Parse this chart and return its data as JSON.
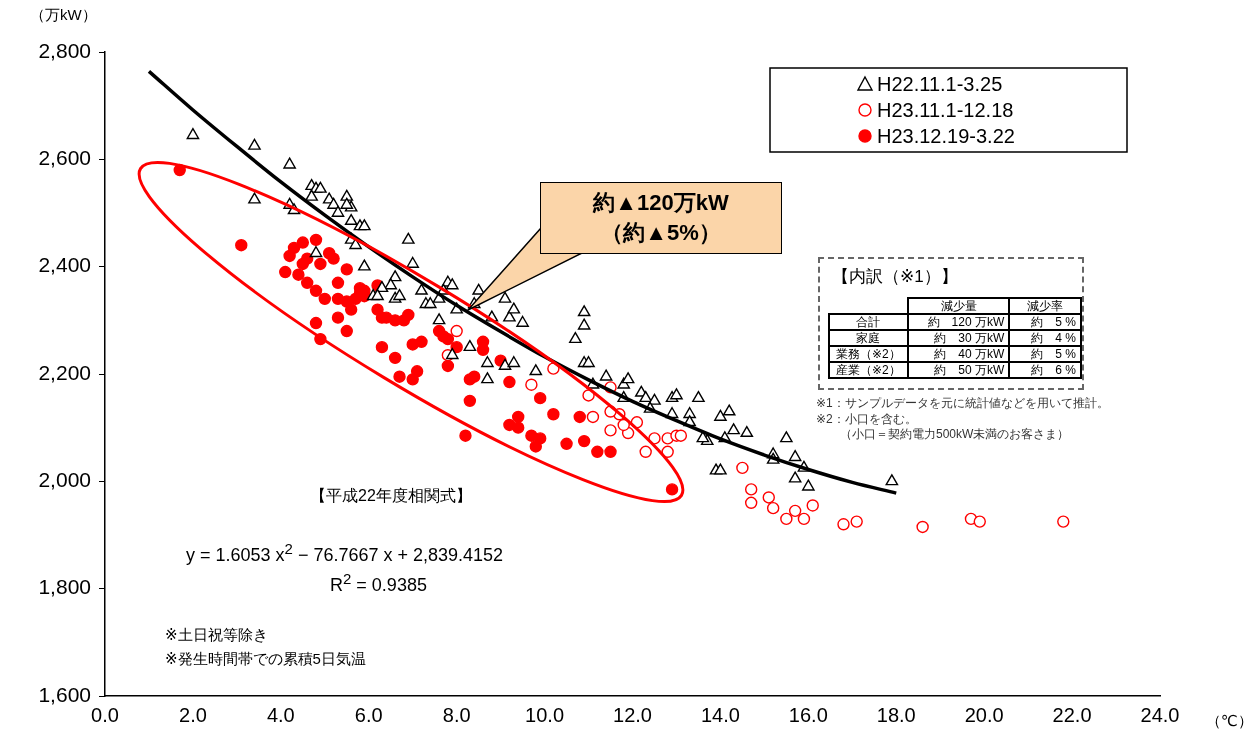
{
  "chart_data": {
    "type": "scatter",
    "xlabel": "（℃）",
    "ylabel": "（万kW）",
    "xlim": [
      0,
      24
    ],
    "xticks": [
      {
        "value": 0,
        "label": "0.0"
      },
      {
        "value": 2,
        "label": "2.0"
      },
      {
        "value": 4,
        "label": "4.0"
      },
      {
        "value": 6,
        "label": "6.0"
      },
      {
        "value": 8,
        "label": "8.0"
      },
      {
        "value": 10,
        "label": "10.0"
      },
      {
        "value": 12,
        "label": "12.0"
      },
      {
        "value": 14,
        "label": "14.0"
      },
      {
        "value": 16,
        "label": "16.0"
      },
      {
        "value": 18,
        "label": "18.0"
      },
      {
        "value": 20,
        "label": "20.0"
      },
      {
        "value": 22,
        "label": "22.0"
      },
      {
        "value": 24,
        "label": "24.0"
      }
    ],
    "ylim": [
      1600,
      2800
    ],
    "yticks": [
      {
        "value": 1600,
        "label": "1,600"
      },
      {
        "value": 1800,
        "label": "1,800"
      },
      {
        "value": 2000,
        "label": "2,000"
      },
      {
        "value": 2200,
        "label": "2,200"
      },
      {
        "value": 2400,
        "label": "2,400"
      },
      {
        "value": 2600,
        "label": "2,600"
      },
      {
        "value": 2800,
        "label": "2,800"
      }
    ],
    "grid": false,
    "legend": "top right",
    "series": [
      {
        "name": "H22.11.1-3.25",
        "color": "#000000",
        "marker": "triangle",
        "x": [
          2.0,
          3.4,
          4.2,
          3.4,
          4.2,
          4.3,
          4.7,
          4.8,
          4.9,
          4.7,
          5.1,
          5.5,
          5.2,
          5.6,
          5.3,
          5.5,
          5.6,
          5.8,
          5.6,
          5.7,
          5.9,
          4.8,
          6.9,
          7.0,
          5.9,
          6.6,
          6.5,
          6.3,
          6.1,
          6.2,
          6.6,
          6.7,
          7.2,
          7.3,
          7.4,
          7.8,
          7.7,
          7.9,
          8.5,
          7.6,
          8.0,
          8.4,
          7.6,
          8.8,
          9.2,
          9.5,
          9.1,
          9.3,
          8.7,
          8.7,
          7.9,
          8.3,
          9.1,
          9.8,
          9.3,
          10.9,
          10.9,
          10.7,
          10.9,
          11.0,
          11.1,
          11.4,
          11.8,
          11.9,
          12.2,
          12.3,
          11.8,
          12.5,
          12.4,
          12.9,
          13.0,
          12.9,
          13.5,
          13.3,
          13.3,
          14.0,
          14.2,
          13.7,
          13.6,
          14.1,
          14.3,
          14.6,
          13.9,
          14.0,
          15.2,
          15.7,
          15.2,
          15.9,
          16.0,
          15.7,
          15.5,
          17.9
        ],
        "values": [
          2645,
          2625,
          2590,
          2525,
          2515,
          2505,
          2550,
          2545,
          2545,
          2530,
          2525,
          2530,
          2515,
          2510,
          2500,
          2515,
          2485,
          2475,
          2450,
          2440,
          2475,
          2425,
          2450,
          2405,
          2400,
          2380,
          2365,
          2360,
          2345,
          2345,
          2340,
          2345,
          2355,
          2330,
          2330,
          2370,
          2355,
          2365,
          2355,
          2340,
          2320,
          2330,
          2300,
          2305,
          2305,
          2295,
          2340,
          2320,
          2220,
          2190,
          2235,
          2250,
          2215,
          2205,
          2220,
          2315,
          2290,
          2265,
          2220,
          2220,
          2180,
          2195,
          2180,
          2190,
          2165,
          2155,
          2155,
          2150,
          2135,
          2155,
          2160,
          2125,
          2155,
          2125,
          2110,
          2120,
          2130,
          2075,
          2080,
          2080,
          2095,
          2090,
          2020,
          2020,
          2050,
          2045,
          2040,
          2025,
          1990,
          2005,
          2080,
          2000
        ]
      },
      {
        "name": "H23.11.1-12.18",
        "color": "#ff0000",
        "marker": "circle",
        "x": [
          8.0,
          7.8,
          9.7,
          10.2,
          11.5,
          11.7,
          11.9,
          11.5,
          12.1,
          12.3,
          12.5,
          12.8,
          13.0,
          13.1,
          12.8,
          11.5,
          11.1,
          14.5,
          14.7,
          14.7,
          15.1,
          15.2,
          15.5,
          15.7,
          15.9,
          16.1,
          16.8,
          17.1,
          18.6,
          19.7,
          19.9,
          21.8,
          11.0,
          11.8
        ],
        "values": [
          2280,
          2235,
          2180,
          2210,
          2175,
          2125,
          2090,
          2095,
          2110,
          2055,
          2080,
          2080,
          2085,
          2085,
          2055,
          2130,
          2120,
          2025,
          1985,
          1960,
          1970,
          1950,
          1930,
          1945,
          1930,
          1955,
          1920,
          1925,
          1915,
          1930,
          1925,
          1925,
          2160,
          2105
        ]
      },
      {
        "name": "H23.12.19-3.22",
        "color": "#ff0000",
        "marker": "circle",
        "x": [
          1.7,
          3.1,
          4.1,
          4.2,
          4.3,
          4.5,
          4.6,
          4.4,
          4.5,
          4.8,
          4.6,
          5.1,
          5.2,
          5.3,
          4.9,
          5.5,
          4.8,
          4.8,
          5.0,
          5.5,
          4.9,
          5.7,
          5.6,
          5.8,
          5.9,
          5.8,
          6.2,
          5.9,
          5.3,
          5.3,
          5.5,
          6.2,
          6.3,
          6.6,
          6.8,
          6.9,
          6.4,
          6.3,
          6.6,
          6.7,
          7.0,
          7.2,
          7.1,
          7.0,
          7.6,
          7.7,
          7.8,
          8.0,
          7.8,
          8.3,
          8.4,
          8.3,
          8.6,
          8.6,
          8.2,
          9.2,
          9.2,
          9.4,
          9.7,
          9.9,
          9.4,
          9.8,
          9.9,
          10.2,
          10.9,
          10.8,
          11.2,
          11.5,
          12.9,
          10.5,
          9.0
        ],
        "values": [
          2580,
          2440,
          2390,
          2420,
          2435,
          2405,
          2415,
          2385,
          2445,
          2450,
          2370,
          2425,
          2415,
          2370,
          2405,
          2395,
          2355,
          2295,
          2340,
          2335,
          2265,
          2340,
          2320,
          2350,
          2355,
          2360,
          2365,
          2345,
          2340,
          2305,
          2280,
          2320,
          2305,
          2300,
          2300,
          2310,
          2305,
          2250,
          2230,
          2195,
          2255,
          2260,
          2205,
          2190,
          2280,
          2270,
          2265,
          2250,
          2215,
          2190,
          2195,
          2150,
          2260,
          2245,
          2085,
          2105,
          2185,
          2120,
          2085,
          2080,
          2100,
          2065,
          2155,
          2125,
          2075,
          2120,
          2055,
          2055,
          1985,
          2070,
          2225
        ]
      },
      {
        "type": "line",
        "color": "#000000",
        "marker": "none",
        "x": [
          1,
          2,
          3,
          4,
          5,
          6,
          7,
          8,
          9,
          10,
          11,
          12,
          13,
          14,
          15,
          16,
          17,
          18
        ],
        "values": [
          2764,
          2692,
          2624,
          2558,
          2496,
          2437,
          2381,
          2328,
          2279,
          2232,
          2189,
          2149,
          2113,
          2079,
          2049,
          2022,
          1998,
          1978
        ]
      }
    ],
    "annotations": [
      "約▲120万kW\n（約▲5%）",
      "【内訳（※1）】",
      "減少量",
      "減少率",
      "合計",
      "約　120 万kW",
      "約　5 %",
      "家庭",
      "約　30 万kW",
      "約　4 %",
      "業務（※2）",
      "約　40 万kW",
      "約　5 %",
      "産業（※2）",
      "約　50 万kW",
      "約　6 %",
      "※1：サンプルデータを元に統計値などを用いて推計。",
      "※2：小口を含む。",
      "（小口＝契約電力500kW未満のお客さま）",
      "【平成22年度相関式】",
      "y =  1.6053 x$^{2}$ −  76.7667 x +  2,839.4152",
      "R$^{2}$ =  0.9385",
      "※土日祝等除き",
      "※発生時間帯での累積5日気温"
    ]
  }
}
